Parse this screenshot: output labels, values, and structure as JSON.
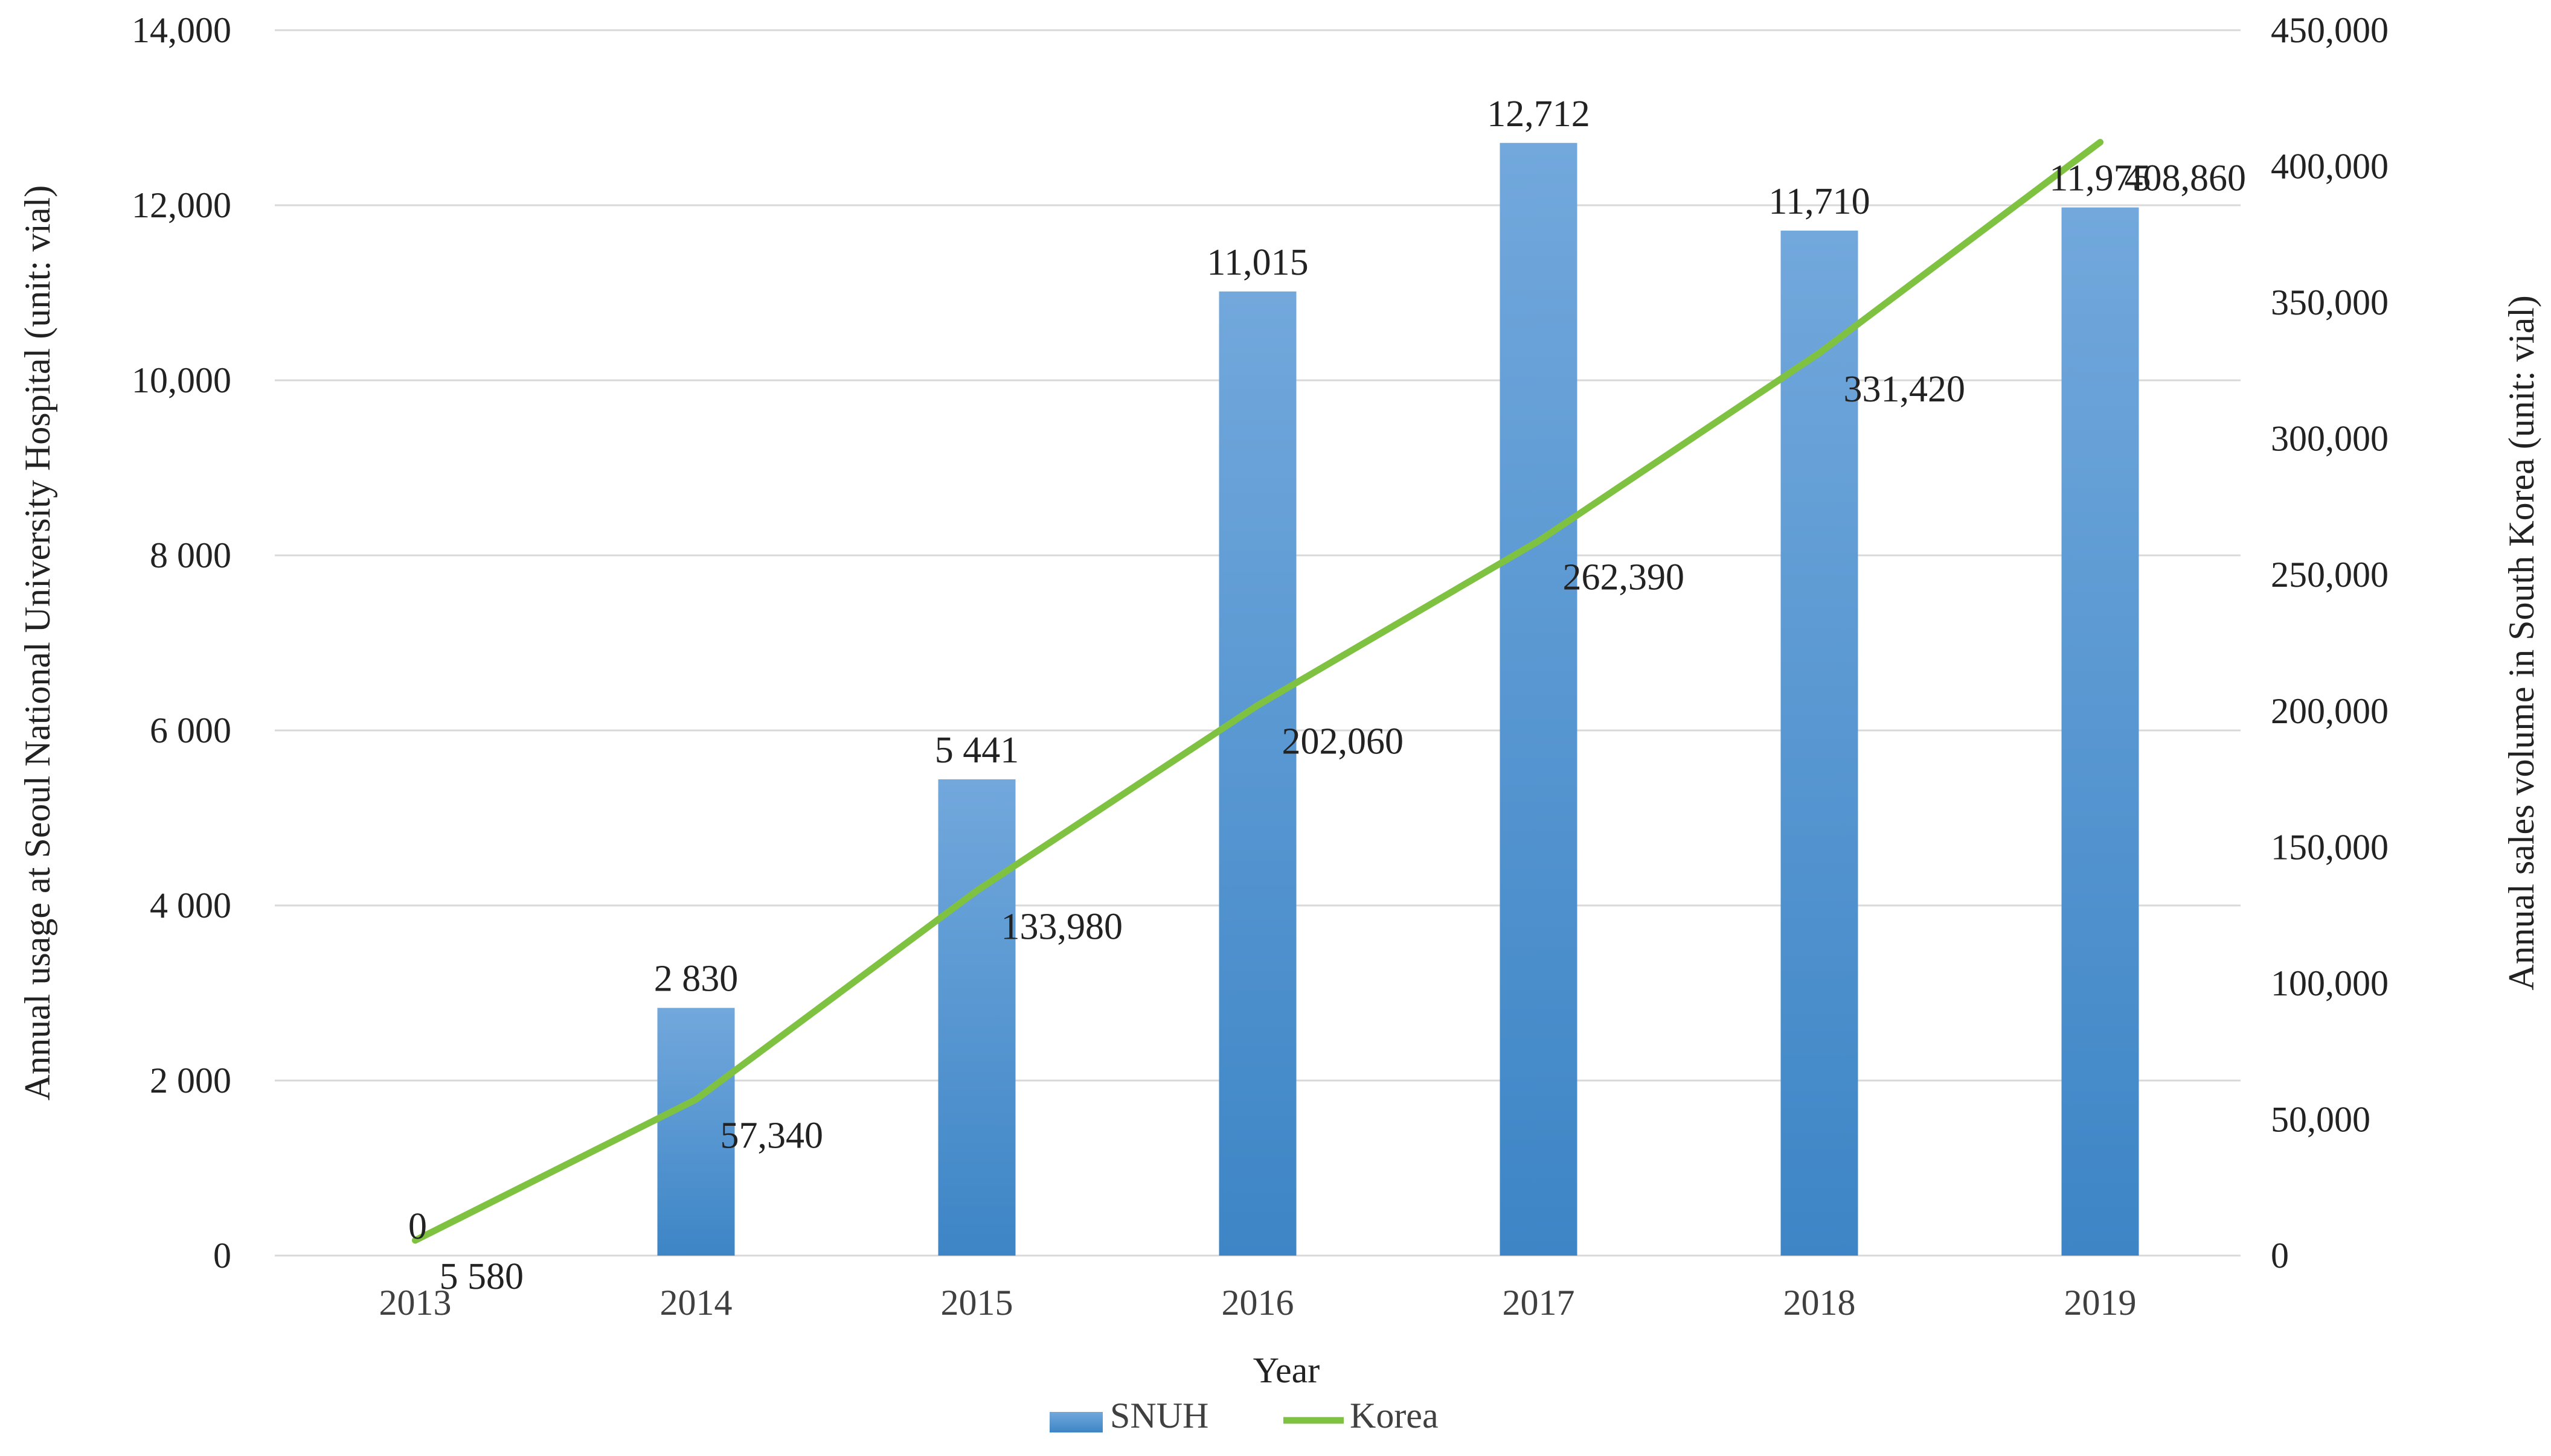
{
  "chart_data": {
    "type": "bar",
    "categories": [
      "2013",
      "2014",
      "2015",
      "2016",
      "2017",
      "2018",
      "2019"
    ],
    "series": [
      {
        "name": "SNUH",
        "type": "bar",
        "axis": "left",
        "values": [
          0,
          2830,
          5441,
          11015,
          12712,
          11710,
          11975
        ],
        "labels": [
          "0",
          "2 830",
          "5 441",
          "11,015",
          "12,712",
          "11,710",
          "11,975"
        ],
        "color": "#5b9bd5"
      },
      {
        "name": "Korea",
        "type": "line",
        "axis": "right",
        "values": [
          5580,
          57340,
          133980,
          202060,
          262390,
          331420,
          408860
        ],
        "labels": [
          "5 580",
          "57,340",
          "133,980",
          "202,060",
          "262,390",
          "331,420",
          "408,860"
        ],
        "color": "#7fc241"
      }
    ],
    "xlabel": "Year",
    "ylabel": "Annual usage at Seoul National University Hospital (unit: vial)",
    "y2label": "Annual sales volume in South Korea (unit: vial)",
    "ylim": [
      0,
      14000
    ],
    "y2lim": [
      0,
      450000
    ],
    "y_ticks": [
      0,
      2000,
      4000,
      6000,
      8000,
      10000,
      12000,
      14000
    ],
    "y_tick_labels": [
      "0",
      "2 000",
      "4 000",
      "6 000",
      "8 000",
      "10,000",
      "12,000",
      "14,000"
    ],
    "y2_ticks": [
      0,
      50000,
      100000,
      150000,
      200000,
      250000,
      300000,
      350000,
      400000,
      450000
    ],
    "y2_tick_labels": [
      "0",
      "50,000",
      "100,000",
      "150,000",
      "200,000",
      "250,000",
      "300,000",
      "350,000",
      "400,000",
      "450,000"
    ],
    "grid": true,
    "legend": {
      "position": "bottom",
      "entries": [
        "SNUH",
        "Korea"
      ]
    },
    "colors": {
      "bar_top": "#72a8dc",
      "bar_bottom": "#3d85c6",
      "line": "#7fc241",
      "grid": "#d9d9d9",
      "text": "#222222",
      "tick_text": "#404040"
    }
  }
}
